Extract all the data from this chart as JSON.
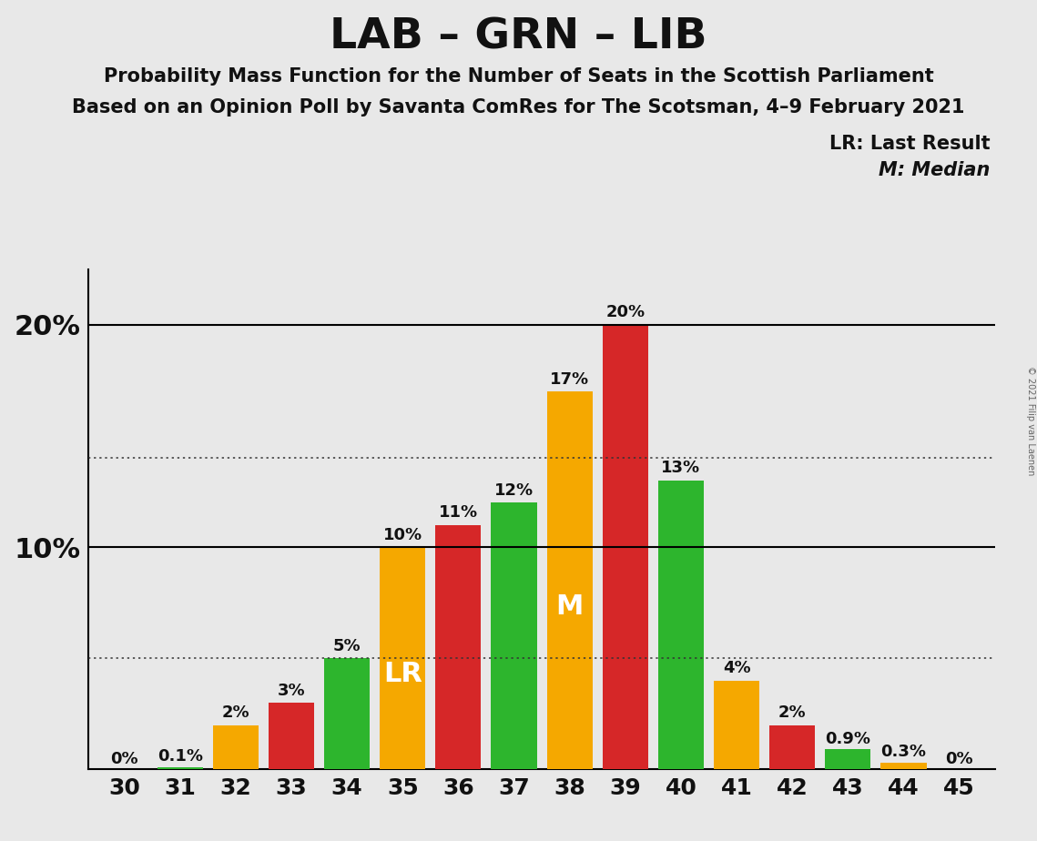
{
  "title": "LAB – GRN – LIB",
  "subtitle1": "Probability Mass Function for the Number of Seats in the Scottish Parliament",
  "subtitle2": "Based on an Opinion Poll by Savanta ComRes for The Scotsman, 4–9 February 2021",
  "copyright": "© 2021 Filip van Laenen",
  "seats": [
    30,
    31,
    32,
    33,
    34,
    35,
    36,
    37,
    38,
    39,
    40,
    41,
    42,
    43,
    44,
    45
  ],
  "values": [
    0.0,
    0.1,
    2.0,
    3.0,
    5.0,
    10.0,
    11.0,
    12.0,
    17.0,
    20.0,
    13.0,
    4.0,
    2.0,
    0.9,
    0.3,
    0.0
  ],
  "colors": [
    "#2db52d",
    "#2db52d",
    "#f5a800",
    "#d62728",
    "#2db52d",
    "#f5a800",
    "#d62728",
    "#2db52d",
    "#f5a800",
    "#d62728",
    "#2db52d",
    "#f5a800",
    "#d62728",
    "#2db52d",
    "#f5a800",
    "#f5a800"
  ],
  "bar_labels": [
    "0%",
    "0.1%",
    "2%",
    "3%",
    "5%",
    "10%",
    "11%",
    "12%",
    "17%",
    "20%",
    "13%",
    "4%",
    "2%",
    "0.9%",
    "0.3%",
    "0%"
  ],
  "special_labels": {
    "35": "LR",
    "38": "M"
  },
  "dotted_lines": [
    5.0,
    14.0
  ],
  "solid_lines": [
    10.0,
    20.0
  ],
  "ylim_max": 22.5,
  "background_color": "#e8e8e8",
  "legend_lr": "LR: Last Result",
  "legend_m": "M: Median",
  "bar_width": 0.82,
  "title_fontsize": 34,
  "subtitle_fontsize": 15,
  "ytick_fontsize": 22,
  "xtick_fontsize": 18,
  "label_fontsize": 13,
  "special_label_fontsize": 22
}
